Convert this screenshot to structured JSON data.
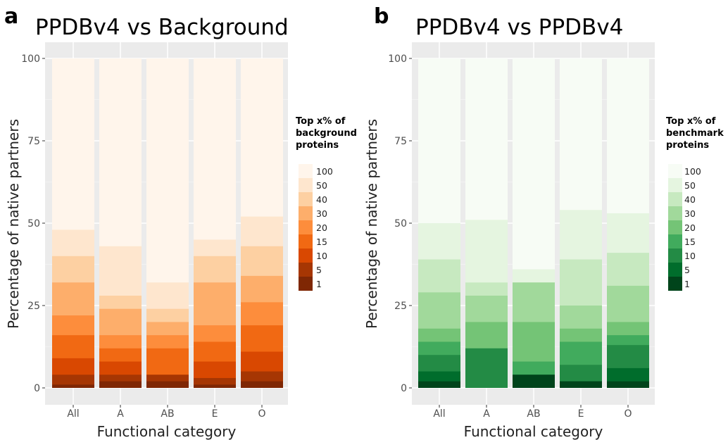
{
  "chart_data": [
    {
      "panel": "a",
      "type": "bar",
      "stacked": true,
      "title": "PPDBv4 vs Background",
      "xlabel": "Functional category",
      "ylabel": "Percentage of native partners",
      "ylim": [
        0,
        100
      ],
      "yticks": [
        "0",
        "25",
        "50",
        "75",
        "100"
      ],
      "categories": [
        "All",
        "A",
        "AB",
        "E",
        "O"
      ],
      "legend_title": [
        "Top x% of",
        "background",
        "proteins"
      ],
      "legend_position": "right",
      "grid": true,
      "colors": [
        "#7f2704",
        "#a63603",
        "#d94801",
        "#f16913",
        "#fd8d3c",
        "#fdae6b",
        "#fdd0a2",
        "#fee6ce",
        "#fff5eb"
      ],
      "series": [
        {
          "name": "1",
          "cumulative": [
            1,
            2,
            2,
            1,
            2
          ]
        },
        {
          "name": "5",
          "cumulative": [
            4,
            4,
            4,
            3,
            5
          ]
        },
        {
          "name": "10",
          "cumulative": [
            9,
            8,
            4,
            8,
            11
          ]
        },
        {
          "name": "15",
          "cumulative": [
            16,
            12,
            12,
            14,
            19
          ]
        },
        {
          "name": "20",
          "cumulative": [
            22,
            16,
            16,
            19,
            26
          ]
        },
        {
          "name": "30",
          "cumulative": [
            32,
            24,
            20,
            32,
            34
          ]
        },
        {
          "name": "40",
          "cumulative": [
            40,
            28,
            24,
            40,
            43
          ]
        },
        {
          "name": "50",
          "cumulative": [
            48,
            43,
            32,
            45,
            52
          ]
        },
        {
          "name": "100",
          "cumulative": [
            100,
            100,
            100,
            100,
            100
          ]
        }
      ]
    },
    {
      "panel": "b",
      "type": "bar",
      "stacked": true,
      "title": "PPDBv4 vs PPDBv4",
      "xlabel": "Functional category",
      "ylabel": "Percentage of native partners",
      "ylim": [
        0,
        100
      ],
      "yticks": [
        "0",
        "25",
        "50",
        "75",
        "100"
      ],
      "categories": [
        "All",
        "A",
        "AB",
        "E",
        "O"
      ],
      "legend_title": [
        "Top x% of",
        "benchmark",
        "proteins"
      ],
      "legend_position": "right",
      "grid": true,
      "colors": [
        "#00441b",
        "#006d2c",
        "#238b45",
        "#41ab5d",
        "#74c476",
        "#a1d99b",
        "#c7e9c0",
        "#e5f5e0",
        "#f7fcf5"
      ],
      "series": [
        {
          "name": "1",
          "cumulative": [
            2,
            0,
            4,
            2,
            2
          ]
        },
        {
          "name": "5",
          "cumulative": [
            5,
            0,
            4,
            2,
            6
          ]
        },
        {
          "name": "10",
          "cumulative": [
            10,
            12,
            4,
            7,
            13
          ]
        },
        {
          "name": "15",
          "cumulative": [
            14,
            12,
            8,
            14,
            16
          ]
        },
        {
          "name": "20",
          "cumulative": [
            18,
            20,
            20,
            18,
            20
          ]
        },
        {
          "name": "30",
          "cumulative": [
            29,
            28,
            32,
            25,
            31
          ]
        },
        {
          "name": "40",
          "cumulative": [
            39,
            32,
            32,
            39,
            41
          ]
        },
        {
          "name": "50",
          "cumulative": [
            50,
            51,
            36,
            54,
            53
          ]
        },
        {
          "name": "100",
          "cumulative": [
            100,
            100,
            100,
            100,
            100
          ]
        }
      ]
    }
  ]
}
